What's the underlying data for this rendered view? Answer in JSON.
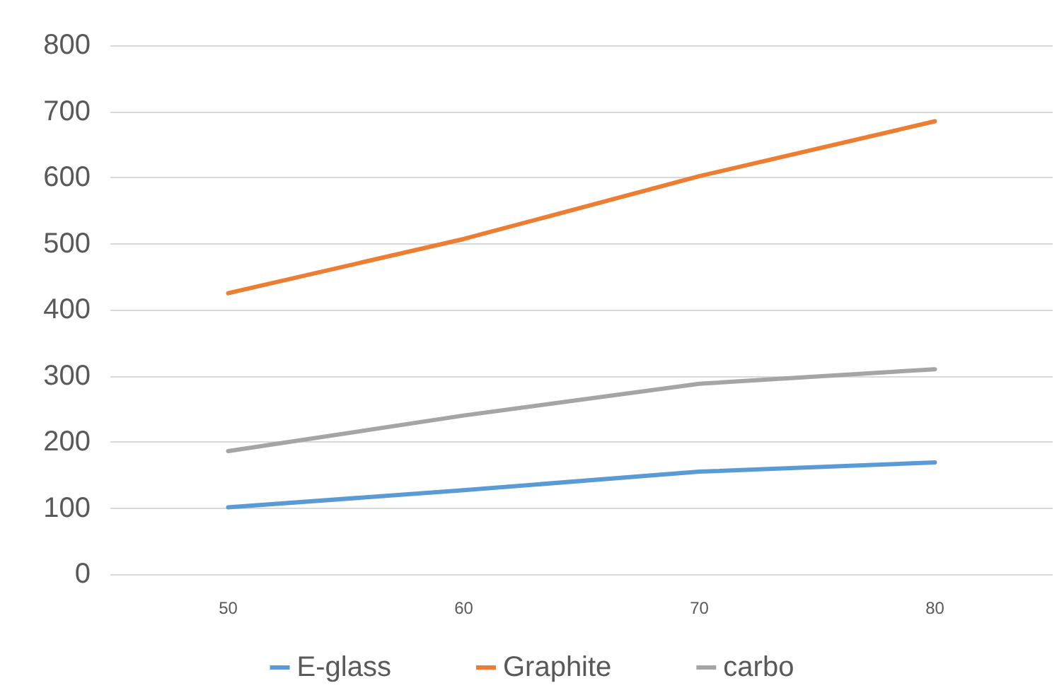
{
  "chart_data": {
    "type": "line",
    "categories": [
      "50",
      "60",
      "70",
      "80"
    ],
    "series": [
      {
        "name": "E-glass",
        "color": "#5b9bd5",
        "values": [
          101,
          127,
          155,
          169
        ]
      },
      {
        "name": "Graphite",
        "color": "#ed7d31",
        "values": [
          425,
          507,
          602,
          685
        ]
      },
      {
        "name": "carbo",
        "color": "#a5a5a5",
        "values": [
          186,
          240,
          288,
          310
        ]
      }
    ],
    "ylim": [
      0,
      800
    ],
    "yticks": [
      0,
      100,
      200,
      300,
      400,
      500,
      600,
      700,
      800
    ],
    "grid": "y",
    "legend": "bottom",
    "marker": "none",
    "line_style": "solid"
  }
}
